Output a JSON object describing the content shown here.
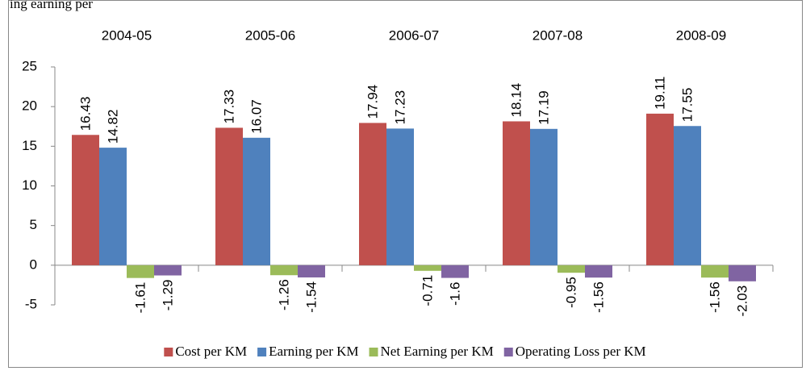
{
  "heading": "ing earning per",
  "chart_data": {
    "type": "bar",
    "categories": [
      "2004-05",
      "2005-06",
      "2006-07",
      "2007-08",
      "2008-09"
    ],
    "series": [
      {
        "name": "Cost per KM",
        "color": "#c0504d",
        "values": [
          16.43,
          17.33,
          17.94,
          18.14,
          19.11
        ]
      },
      {
        "name": "Earning per KM",
        "color": "#4f81bd",
        "values": [
          14.82,
          16.07,
          17.23,
          17.19,
          17.55
        ]
      },
      {
        "name": "Net Earning per KM",
        "color": "#9bbb59",
        "values": [
          -1.61,
          -1.26,
          -0.71,
          -0.95,
          -1.56
        ]
      },
      {
        "name": "Operating Loss per KM",
        "color": "#8064a2",
        "values": [
          -1.29,
          -1.54,
          -1.6,
          -1.56,
          -2.03
        ]
      }
    ],
    "ylim": [
      -5,
      25
    ],
    "yticks": [
      -5,
      0,
      5,
      10,
      15,
      20,
      25
    ],
    "grid": false,
    "legend": "bottom"
  }
}
